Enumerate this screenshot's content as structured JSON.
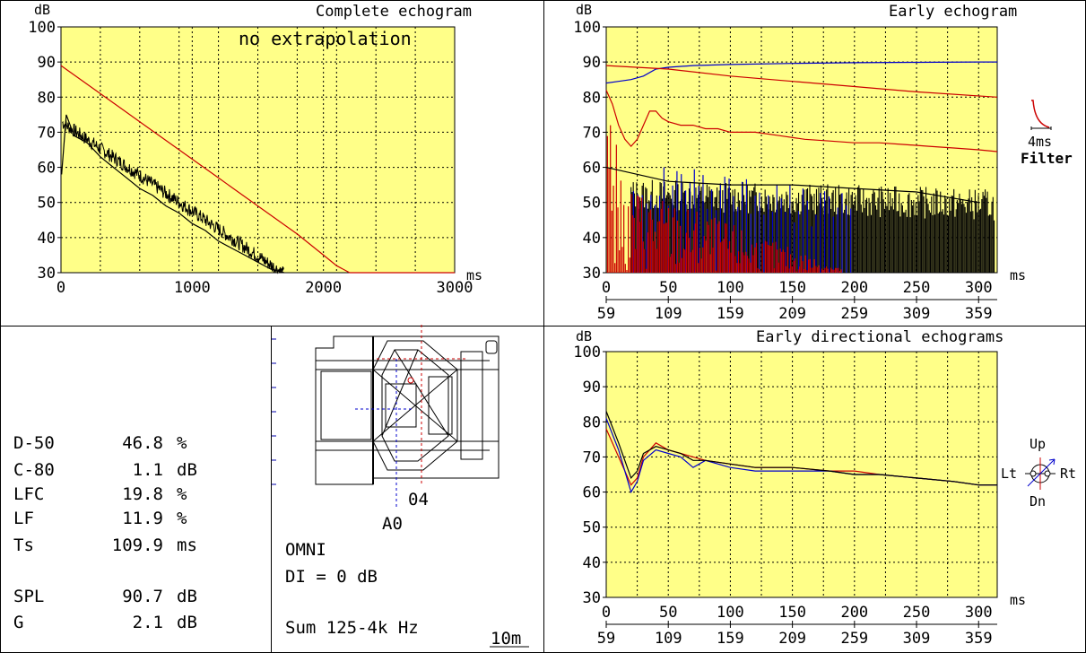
{
  "complete": {
    "title": "Complete echogram",
    "ylabel": "dB",
    "xlabel": "ms",
    "note": "no extrapolation",
    "yticks": [
      "100",
      "90",
      "80",
      "70",
      "60",
      "50",
      "40",
      "30"
    ],
    "xticks": [
      "0",
      "1000",
      "2000",
      "3000"
    ]
  },
  "early": {
    "title": "Early echogram",
    "ylabel": "dB",
    "xlabel": "ms",
    "yticks": [
      "100",
      "90",
      "80",
      "70",
      "60",
      "50",
      "40",
      "30"
    ],
    "xticks": [
      "0",
      "50",
      "100",
      "150",
      "200",
      "250",
      "300"
    ],
    "xticks2": [
      "59",
      "109",
      "159",
      "209",
      "259",
      "309",
      "359"
    ],
    "filter_value": "4ms",
    "filter_label": "Filter"
  },
  "directional": {
    "title": "Early directional echograms",
    "ylabel": "dB",
    "xlabel": "ms",
    "yticks": [
      "100",
      "90",
      "80",
      "70",
      "60",
      "50",
      "40",
      "30"
    ],
    "xticks": [
      "0",
      "50",
      "100",
      "150",
      "200",
      "250",
      "300"
    ],
    "xticks2": [
      "59",
      "109",
      "159",
      "209",
      "259",
      "309",
      "359"
    ],
    "compass": {
      "up": "Up",
      "down": "Dn",
      "left": "Lt",
      "right": "Rt"
    }
  },
  "metrics": [
    {
      "name": "D-50",
      "value": "46.8",
      "unit": "%"
    },
    {
      "name": "C-80",
      "value": "1.1",
      "unit": "dB"
    },
    {
      "name": "LFC",
      "value": "19.8",
      "unit": "%"
    },
    {
      "name": "LF",
      "value": "11.9",
      "unit": "%"
    },
    {
      "name": "Ts",
      "value": "109.9",
      "unit": "ms"
    },
    {
      "name": "SPL",
      "value": "90.7",
      "unit": "dB"
    },
    {
      "name": "G",
      "value": "2.1",
      "unit": "dB"
    }
  ],
  "plan": {
    "source_label": "A0",
    "receiver_label": "04",
    "mode": "OMNI",
    "di": "DI = 0 dB",
    "band": "Sum 125-4k Hz",
    "scale": "10m"
  },
  "colors": {
    "plot_bg": "#ffff88",
    "red": "#cc0000",
    "blue": "#0000cc",
    "dark_red": "#a00000",
    "navy": "#0000aa"
  },
  "chart_data": [
    {
      "type": "line",
      "title": "Complete echogram",
      "xlabel": "ms",
      "ylabel": "dB",
      "xlim": [
        0,
        3000
      ],
      "ylim": [
        30,
        100
      ],
      "series": [
        {
          "color": "#cc0000",
          "x": [
            0,
            300,
            600,
            900,
            1200,
            1500,
            1800,
            2000,
            2100,
            2200,
            3000
          ],
          "values": [
            89,
            81,
            73,
            65,
            57,
            49,
            41,
            35,
            32,
            30,
            30
          ]
        },
        {
          "color": "#000000",
          "x": [
            5,
            40,
            100,
            200,
            300,
            400,
            500,
            600,
            700,
            800,
            900,
            1000,
            1100,
            1200,
            1300,
            1400,
            1500,
            1600,
            1700
          ],
          "values": [
            58,
            75,
            69,
            67,
            63,
            60,
            57,
            54,
            52,
            49,
            47,
            44,
            42,
            39,
            37,
            35,
            33,
            31,
            30
          ]
        }
      ]
    },
    {
      "type": "line",
      "title": "Early echogram",
      "xlabel": "ms",
      "ylabel": "dB",
      "xlim": [
        0,
        315
      ],
      "ylim": [
        30,
        100
      ],
      "series": [
        {
          "color": "#0000cc",
          "x": [
            0,
            10,
            20,
            30,
            40,
            50,
            70,
            100,
            150,
            200,
            250,
            300,
            315
          ],
          "values": [
            84,
            84.5,
            85,
            86,
            88,
            88.5,
            89,
            89.3,
            89.6,
            89.8,
            89.9,
            90,
            90
          ]
        },
        {
          "color": "#cc0000",
          "x": [
            0,
            50,
            100,
            150,
            200,
            250,
            315
          ],
          "values": [
            89,
            88,
            86,
            84.5,
            83,
            81.5,
            80
          ]
        },
        {
          "color": "#cc0000",
          "x": [
            0,
            5,
            10,
            15,
            20,
            25,
            30,
            35,
            40,
            45,
            50,
            60,
            70,
            80,
            90,
            100,
            120,
            140,
            160,
            180,
            200,
            220,
            240,
            260,
            280,
            300,
            315
          ],
          "values": [
            82,
            78,
            72,
            68,
            66,
            68,
            72,
            76,
            76,
            74,
            73,
            72,
            72,
            71,
            71,
            70,
            70,
            69,
            68,
            67.5,
            67,
            67,
            66.5,
            66,
            65.5,
            65,
            64.5
          ]
        },
        {
          "color": "#000000",
          "x": [
            0,
            50,
            100,
            150,
            200,
            250,
            300
          ],
          "values": [
            60,
            56,
            55,
            55,
            54,
            53,
            50
          ]
        }
      ]
    },
    {
      "type": "line",
      "title": "Early directional echograms",
      "xlabel": "ms",
      "ylabel": "dB",
      "xlim": [
        0,
        315
      ],
      "ylim": [
        30,
        100
      ],
      "series": [
        {
          "color": "#cc0000",
          "x": [
            0,
            10,
            20,
            25,
            30,
            40,
            50,
            60,
            70,
            80,
            100,
            120,
            150,
            180,
            200,
            220,
            250,
            280,
            300,
            315
          ],
          "values": [
            78,
            70,
            62,
            64,
            70,
            74,
            72,
            71,
            70,
            69,
            68,
            67,
            67,
            66,
            66,
            65,
            64,
            63,
            62,
            62
          ]
        },
        {
          "color": "#0000cc",
          "x": [
            0,
            10,
            20,
            25,
            30,
            40,
            50,
            60,
            70,
            80,
            100,
            120,
            150,
            180,
            200,
            220,
            250,
            280,
            300,
            315
          ],
          "values": [
            81,
            72,
            60,
            63,
            69,
            72,
            71,
            70,
            67,
            69,
            67,
            66,
            66,
            66,
            65,
            65,
            64,
            63,
            62,
            62
          ]
        },
        {
          "color": "#000000",
          "x": [
            0,
            10,
            20,
            25,
            30,
            40,
            50,
            60,
            70,
            80,
            100,
            120,
            150,
            180,
            200,
            220,
            250,
            280,
            300,
            315
          ],
          "values": [
            83,
            74,
            64,
            66,
            71,
            73,
            72,
            71,
            69,
            69,
            68,
            67,
            67,
            66,
            65,
            65,
            64,
            63,
            62,
            62
          ]
        }
      ]
    }
  ]
}
